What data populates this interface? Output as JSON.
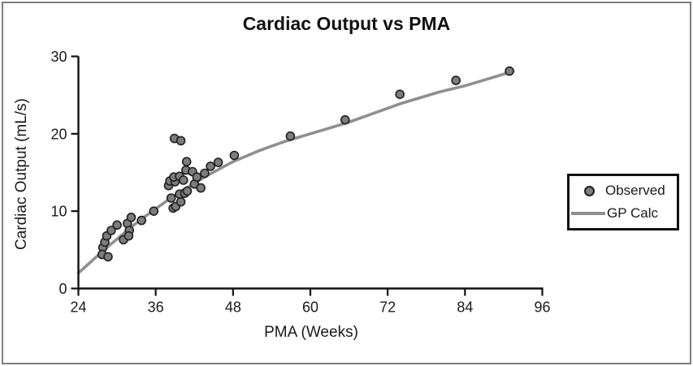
{
  "window": {
    "background": "#ffffff",
    "frame_border_color": "#7e7e7e"
  },
  "chart_data": {
    "type": "scatter",
    "title": "Cardiac Output vs PMA",
    "xlabel": "PMA (Weeks)",
    "ylabel": "Cardiac Output (mL/s)",
    "xlim": [
      24,
      96
    ],
    "ylim": [
      0,
      30
    ],
    "xticks": [
      24,
      36,
      48,
      60,
      72,
      84,
      96
    ],
    "yticks": [
      0,
      10,
      20,
      30
    ],
    "grid": false,
    "legend": {
      "position": "outside-right",
      "entries": [
        {
          "label": "Observed",
          "marker": "circle"
        },
        {
          "label": "GP Calc",
          "marker": "line"
        }
      ]
    },
    "colors": {
      "marker_fill": "#7d7d7d",
      "marker_stroke": "#1f1f1f",
      "line": "#8f8f8f",
      "axis": "#111111",
      "text": "#1a1a1a"
    },
    "series": [
      {
        "name": "Observed",
        "type": "scatter",
        "points": [
          [
            27.8,
            5.3
          ],
          [
            27.7,
            4.4
          ],
          [
            28.6,
            4.1
          ],
          [
            28.1,
            6.0
          ],
          [
            28.4,
            6.8
          ],
          [
            29.1,
            7.5
          ],
          [
            30.0,
            8.2
          ],
          [
            31.0,
            6.3
          ],
          [
            31.6,
            8.4
          ],
          [
            31.9,
            7.5
          ],
          [
            31.8,
            6.8
          ],
          [
            32.2,
            9.2
          ],
          [
            33.8,
            8.8
          ],
          [
            35.7,
            10.0
          ],
          [
            38.4,
            11.7
          ],
          [
            38.7,
            10.4
          ],
          [
            39.1,
            10.6
          ],
          [
            39.9,
            11.2
          ],
          [
            39.7,
            12.2
          ],
          [
            40.5,
            12.3
          ],
          [
            40.9,
            12.6
          ],
          [
            38.0,
            13.3
          ],
          [
            38.2,
            13.9
          ],
          [
            39.0,
            13.8
          ],
          [
            38.8,
            14.4
          ],
          [
            39.7,
            14.5
          ],
          [
            40.3,
            14.0
          ],
          [
            40.8,
            16.4
          ],
          [
            40.7,
            15.3
          ],
          [
            41.7,
            15.1
          ],
          [
            42.0,
            13.5
          ],
          [
            43.0,
            13.0
          ],
          [
            42.4,
            14.4
          ],
          [
            43.6,
            14.9
          ],
          [
            44.5,
            15.8
          ],
          [
            45.7,
            16.3
          ],
          [
            48.2,
            17.2
          ],
          [
            38.9,
            19.4
          ],
          [
            39.9,
            19.1
          ],
          [
            56.9,
            19.7
          ],
          [
            65.4,
            21.8
          ],
          [
            73.9,
            25.1
          ],
          [
            82.6,
            26.9
          ],
          [
            90.9,
            28.1
          ]
        ]
      },
      {
        "name": "GP Calc",
        "type": "line",
        "points": [
          [
            24,
            2.0
          ],
          [
            26,
            3.5
          ],
          [
            28,
            5.0
          ],
          [
            30,
            6.4
          ],
          [
            32,
            7.8
          ],
          [
            34,
            9.1
          ],
          [
            36,
            10.3
          ],
          [
            38,
            11.5
          ],
          [
            40,
            12.6
          ],
          [
            42,
            13.6
          ],
          [
            44,
            14.6
          ],
          [
            46,
            15.5
          ],
          [
            48,
            16.4
          ],
          [
            50,
            17.1
          ],
          [
            52,
            17.8
          ],
          [
            54,
            18.4
          ],
          [
            56,
            19.0
          ],
          [
            58,
            19.5
          ],
          [
            60,
            20.0
          ],
          [
            62,
            20.5
          ],
          [
            64,
            21.0
          ],
          [
            66,
            21.5
          ],
          [
            68,
            22.1
          ],
          [
            70,
            22.7
          ],
          [
            72,
            23.3
          ],
          [
            74,
            23.9
          ],
          [
            76,
            24.4
          ],
          [
            78,
            24.9
          ],
          [
            80,
            25.4
          ],
          [
            82,
            25.8
          ],
          [
            84,
            26.2
          ],
          [
            86,
            26.7
          ],
          [
            88,
            27.2
          ],
          [
            90,
            27.7
          ],
          [
            91.5,
            28.1
          ]
        ]
      }
    ]
  }
}
